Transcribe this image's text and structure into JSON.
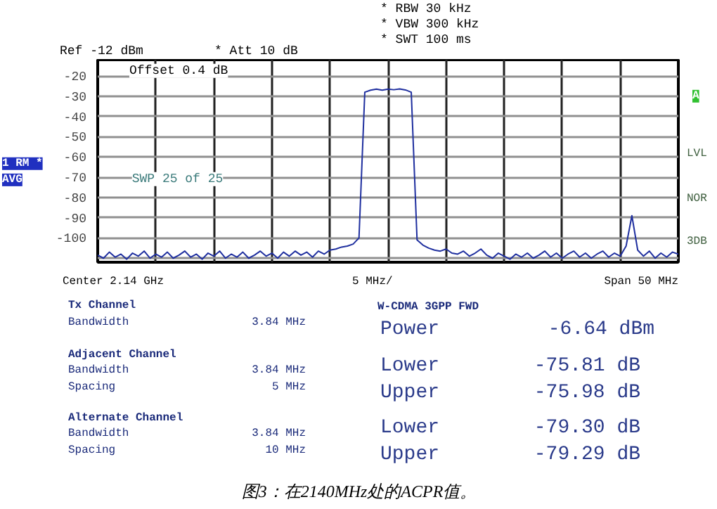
{
  "chart_data": {
    "type": "line",
    "title": "图3：在2140MHz处的ACPR值。",
    "categories": [
      null,
      null,
      null,
      null,
      null,
      null,
      null,
      null,
      null,
      null,
      null,
      null,
      null,
      null,
      null,
      null,
      null,
      null,
      null,
      null,
      null,
      null,
      null,
      null,
      null,
      null,
      null,
      null,
      null,
      null,
      null,
      null,
      null,
      null,
      null,
      null,
      null,
      null,
      null,
      null,
      null,
      null,
      null,
      null,
      null,
      null,
      null,
      null,
      null,
      null,
      null,
      null,
      null,
      null,
      null,
      null,
      null,
      null,
      null,
      null,
      null,
      null,
      null,
      null,
      null,
      null,
      null,
      null,
      null,
      null,
      null,
      null,
      null,
      null,
      null,
      null,
      null,
      null,
      null,
      null,
      null,
      null,
      null,
      null,
      null,
      null,
      null,
      null,
      null,
      null,
      null,
      null,
      null,
      null,
      null,
      null,
      null,
      null,
      null,
      null,
      null
    ],
    "series": [
      {
        "color": "#1f2f9f",
        "values": [
          -108.5,
          -110,
          -107,
          -109.5,
          -108,
          -110.5,
          -107.5,
          -109,
          -106.5,
          -110,
          -108,
          -109.5,
          -107,
          -110,
          -108.5,
          -106.5,
          -109.5,
          -108,
          -110.5,
          -107.5,
          -109,
          -106.5,
          -110,
          -108,
          -109.5,
          -107,
          -110,
          -108.5,
          -106.5,
          -109,
          -107.5,
          -110,
          -107,
          -109,
          -106.5,
          -108.5,
          -107,
          -109.5,
          -106.5,
          -108,
          -106,
          -105.5,
          -104.5,
          -104,
          -103,
          -100,
          -28,
          -27,
          -26.5,
          -27,
          -26.5,
          -26.8,
          -26.4,
          -26.9,
          -28,
          -101,
          -103.5,
          -105,
          -106,
          -106.5,
          -105.5,
          -107.5,
          -108,
          -106.5,
          -109,
          -107.5,
          -105.5,
          -108.5,
          -110,
          -107.5,
          -109,
          -110.5,
          -108,
          -109.5,
          -107.5,
          -110,
          -108.5,
          -106.5,
          -109.5,
          -107.5,
          -110,
          -108,
          -106.5,
          -109.5,
          -107.5,
          -110,
          -108,
          -106.5,
          -109.5,
          -107.5,
          -109,
          -104,
          -89,
          -106,
          -109,
          -106.5,
          -110,
          -107.5,
          -109.5,
          -107,
          -108
        ]
      }
    ],
    "ylim": [
      -112,
      -12
    ],
    "yticks": [
      -20,
      -30,
      -40,
      -50,
      -60,
      -70,
      -80,
      -90,
      -100,
      {
        "value": -110,
        "label": null
      }
    ],
    "tick_labels": "y",
    "grid": true,
    "annotations": [
      "Ref -12 dBm",
      "* Att 10 dB",
      "* RBW 30 kHz",
      "* VBW 300 kHz",
      "* SWT 100 ms",
      "Offset 0.4 dB",
      "SWP 25 of 25",
      "1 RM *",
      "AVG",
      "A",
      "LVL",
      "NOR",
      "3DB",
      "Center 2.14 GHz",
      "5 MHz/",
      "Span 50 MHz",
      "Tx Channel",
      "Bandwidth",
      "3.84 MHz",
      "Adjacent Channel",
      "Bandwidth",
      "3.84 MHz",
      "Spacing",
      "5 MHz",
      "Alternate Channel",
      "Bandwidth",
      "3.84 MHz",
      "Spacing",
      "10 MHz",
      "W-CDMA 3GPP FWD",
      "Power",
      "-6.64 dBm",
      "Lower",
      "-75.81 dB",
      "Upper",
      "-75.98 dB",
      "Lower",
      "-79.30 dB",
      "Upper",
      "-79.29 dB"
    ]
  }
}
